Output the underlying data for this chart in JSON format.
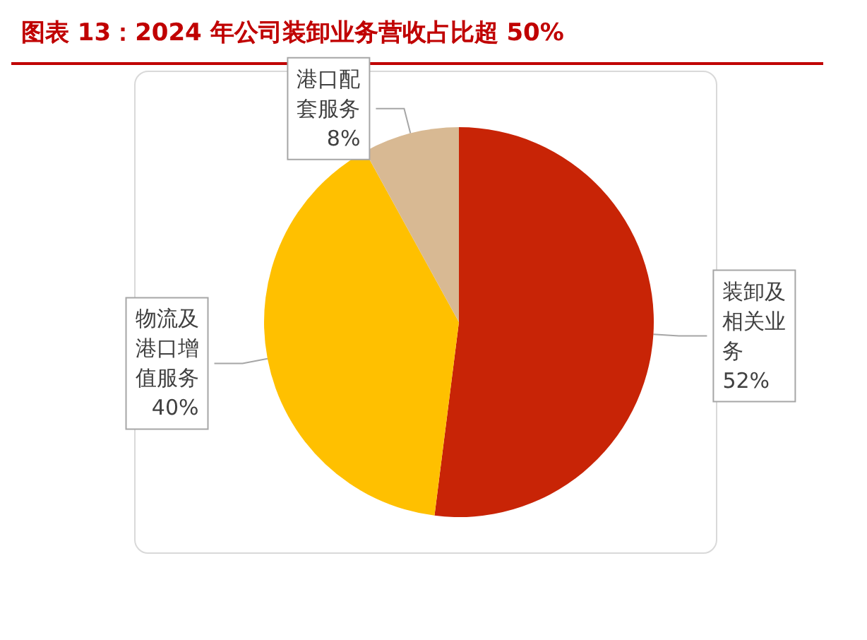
{
  "chart_data": {
    "type": "pie",
    "title": "图表 13：2024 年公司装卸业务营收占比超 50%",
    "categories": [
      "装卸及相关业务",
      "物流及港口增值服务",
      "港口配套服务"
    ],
    "values": [
      52,
      40,
      8
    ],
    "value_labels": [
      "52%",
      "40%",
      "8%"
    ],
    "colors": [
      "#c82406",
      "#ffc000",
      "#d8b993"
    ],
    "legend": false
  }
}
